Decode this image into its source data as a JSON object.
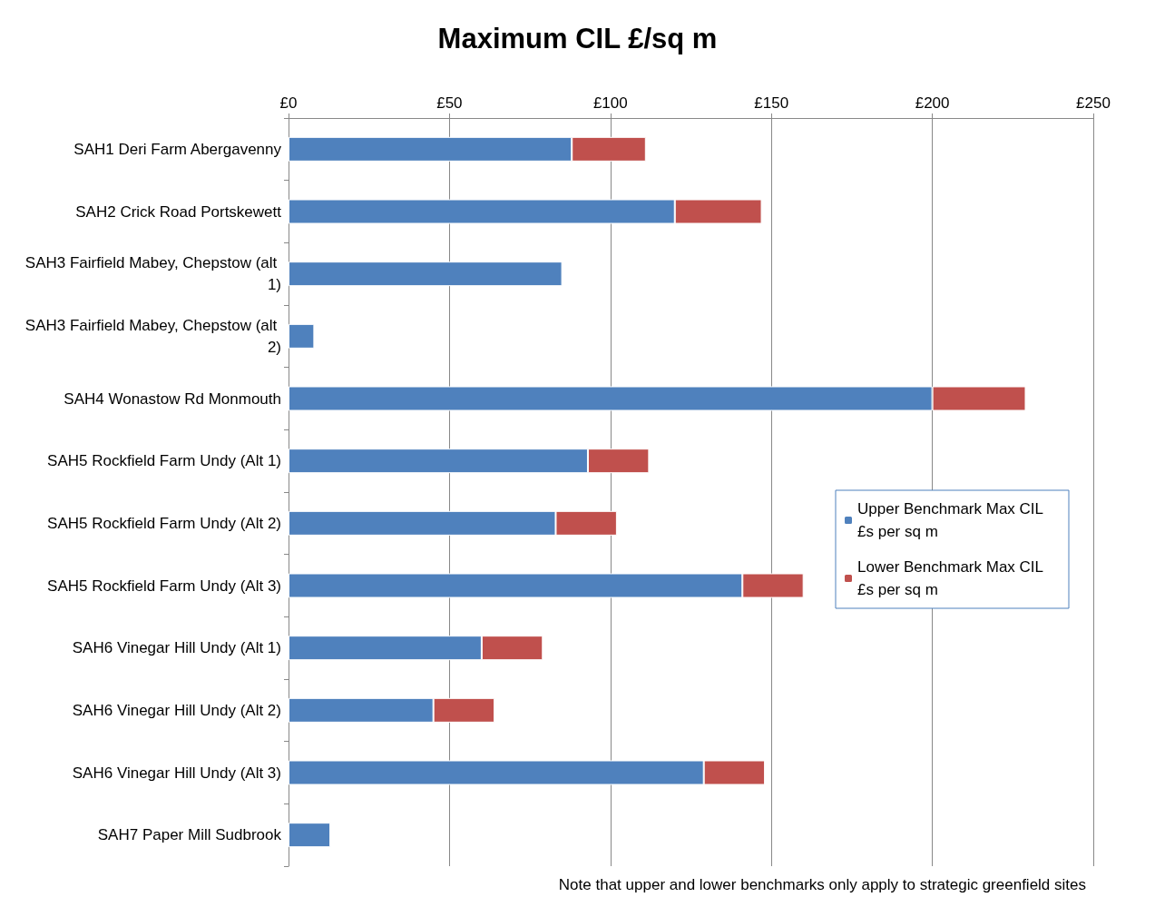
{
  "chart_data": {
    "type": "bar",
    "orientation": "horizontal",
    "stacked": true,
    "title": "Maximum CIL £/sq m",
    "categories": [
      "SAH1 Deri Farm Abergavenny",
      "SAH2 Crick Road Portskewett",
      "SAH3 Fairfield Mabey, Chepstow (alt 1)",
      "SAH3 Fairfield Mabey, Chepstow (alt 2)",
      "SAH4 Wonastow Rd Monmouth",
      "SAH5 Rockfield Farm Undy (Alt 1)",
      "SAH5 Rockfield Farm Undy (Alt 2)",
      "SAH5 Rockfield Farm Undy (Alt 3)",
      "SAH6 Vinegar Hill Undy (Alt 1)",
      "SAH6 Vinegar Hill Undy (Alt 2)",
      "SAH6 Vinegar Hill Undy (Alt 3)",
      "SAH7 Paper Mill Sudbrook"
    ],
    "series": [
      {
        "name": "Upper Benchmark Max CIL £s per sq m",
        "color": "#4f81bd",
        "values": [
          88,
          120,
          85,
          8,
          200,
          93,
          83,
          141,
          60,
          45,
          129,
          13
        ]
      },
      {
        "name": "Lower Benchmark Max CIL £s per sq m",
        "color": "#c0504d",
        "values": [
          23,
          27,
          null,
          null,
          29,
          19,
          19,
          19,
          19,
          19,
          19,
          null
        ]
      }
    ],
    "xlim": [
      0,
      250
    ],
    "xticks": [
      {
        "value": 0,
        "label": "£0"
      },
      {
        "value": 50,
        "label": "£50"
      },
      {
        "value": 100,
        "label": "£100"
      },
      {
        "value": 150,
        "label": "£150"
      },
      {
        "value": 200,
        "label": "£200"
      },
      {
        "value": 250,
        "label": "£250"
      }
    ],
    "grid": "x",
    "legend": "right",
    "annotations": [
      "Note that upper and lower benchmarks only apply to strategic greenfield sites"
    ]
  }
}
